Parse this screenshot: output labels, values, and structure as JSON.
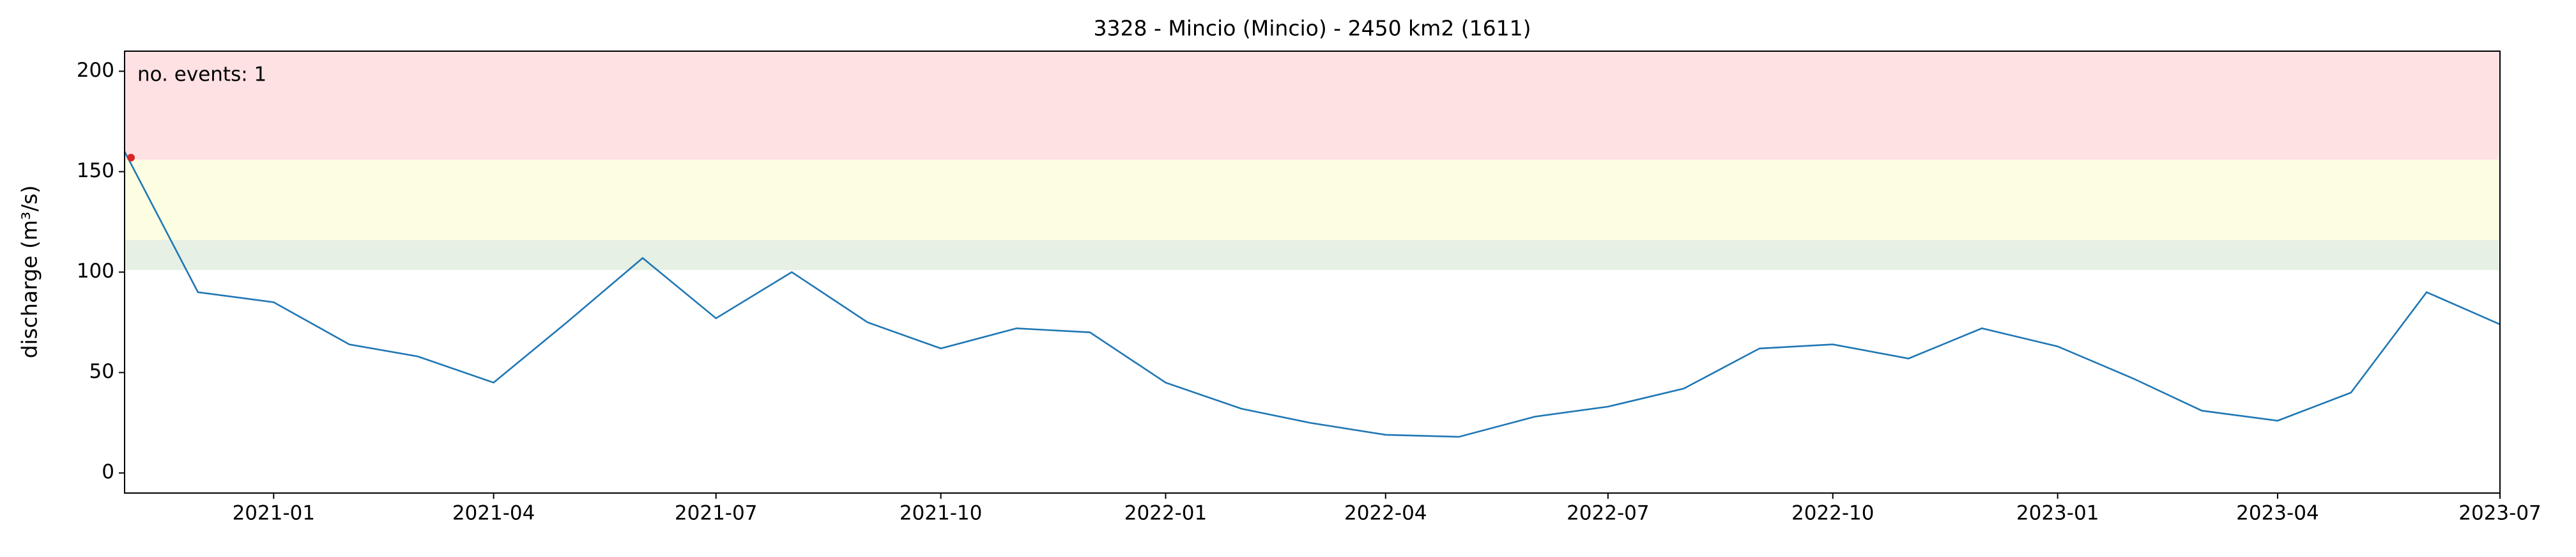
{
  "chart_data": {
    "type": "line",
    "title": "3328 - Mincio (Mincio) - 2450 km2 (1611)",
    "y_label": "discharge (m³/s)",
    "annotation": "no. events: 1",
    "annotation_color": "#cc0000",
    "x": [
      "2020-11",
      "2020-12",
      "2021-01",
      "2021-02",
      "2021-03",
      "2021-04",
      "2021-05",
      "2021-06",
      "2021-07",
      "2021-08",
      "2021-09",
      "2021-10",
      "2021-11",
      "2021-12",
      "2022-01",
      "2022-02",
      "2022-03",
      "2022-04",
      "2022-05",
      "2022-06",
      "2022-07",
      "2022-08",
      "2022-09",
      "2022-10",
      "2022-11",
      "2022-12",
      "2023-01",
      "2023-02",
      "2023-03",
      "2023-04",
      "2023-05",
      "2023-06",
      "2023-07"
    ],
    "series": [
      {
        "color": "#1f77b4",
        "values": [
          160,
          90,
          85,
          64,
          58,
          45,
          75,
          107,
          77,
          100,
          75,
          62,
          72,
          70,
          45,
          32,
          25,
          19,
          18,
          28,
          33,
          42,
          62,
          64,
          57,
          72,
          63,
          47,
          31,
          26,
          40,
          90,
          74
        ]
      }
    ],
    "events": {
      "color": "#d62728",
      "x": [
        "2020-11"
      ],
      "values": [
        157
      ]
    },
    "bands": [
      {
        "range": [
          101,
          116
        ],
        "color": "#e6f0e4"
      },
      {
        "range": [
          116,
          156
        ],
        "color": "#fdfde2"
      },
      {
        "range": [
          156,
          210
        ],
        "color": "#fee1e3"
      }
    ],
    "xlim": [
      "2020-11",
      "2023-07"
    ],
    "xticks": [
      "2021-01",
      "2021-04",
      "2021-07",
      "2021-10",
      "2022-01",
      "2022-04",
      "2022-07",
      "2022-10",
      "2023-01",
      "2023-04",
      "2023-07"
    ],
    "ylim": [
      -10,
      210
    ],
    "yticks": [
      0,
      50,
      100,
      150,
      200
    ]
  }
}
